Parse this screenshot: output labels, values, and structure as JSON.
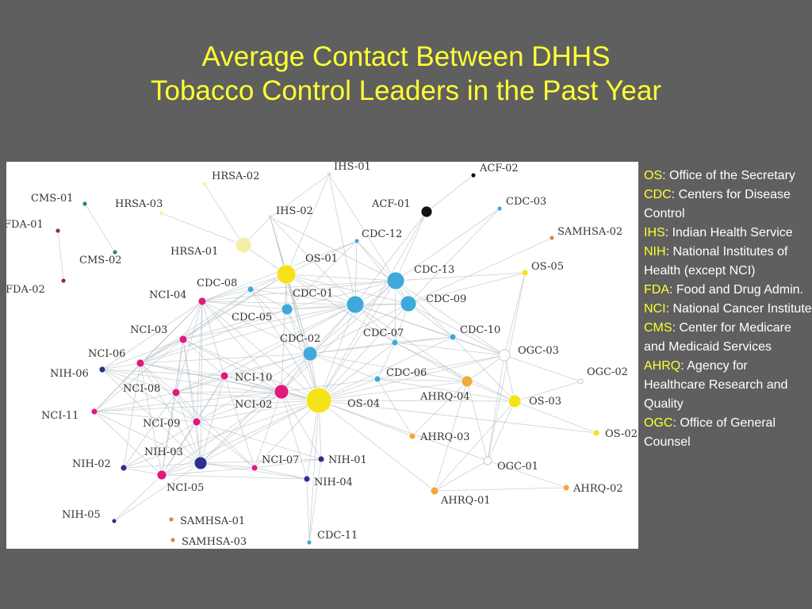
{
  "title": {
    "line1": "Average Contact Between DHHS",
    "line2": "Tobacco Control Leaders in the Past Year"
  },
  "colors": {
    "background": "#5f5f5f",
    "title": "#ffff33",
    "legend_abbr": "#ffff33",
    "legend_text": "#ffffff",
    "OS": "#f5e31a",
    "CDC": "#3ea9da",
    "IHS": "#c9dff0",
    "NIH": "#2b2f8f",
    "FDA": "#9a2b2b",
    "NCI": "#e0197d",
    "CMS": "#17945a",
    "AHRQ": "#f0a93a",
    "OGC": "#ffffff",
    "HRSA": "#f7eea8",
    "ACF": "#111111",
    "SAMHSA": "#d88a4a"
  },
  "legend": [
    {
      "abbr": "OS",
      "desc": ":  Office of the Secretary"
    },
    {
      "abbr": "CDC",
      "desc": ":  Centers for Disease Control"
    },
    {
      "abbr": "IHS",
      "desc": ":  Indian Health Service"
    },
    {
      "abbr": "NIH",
      "desc": ": National Institutes of Health (except NCI)"
    },
    {
      "abbr": "FDA",
      "desc": ":  Food and Drug Admin."
    },
    {
      "abbr": "NCI",
      "desc": ":  National Cancer Institute"
    },
    {
      "abbr": "CMS",
      "desc": ": Center for Medicare and Medicaid Services"
    },
    {
      "abbr": "AHRQ",
      "desc": ":  Agency for Healthcare Research and Quality"
    },
    {
      "abbr": "OGC",
      "desc": ":  Office of General Counsel"
    }
  ],
  "network": {
    "nodes": [
      {
        "id": "HRSA-02",
        "group": "HRSA"
      },
      {
        "id": "HRSA-03",
        "group": "HRSA"
      },
      {
        "id": "HRSA-01",
        "group": "HRSA"
      },
      {
        "id": "IHS-01",
        "group": "IHS"
      },
      {
        "id": "IHS-02",
        "group": "IHS"
      },
      {
        "id": "ACF-02",
        "group": "ACF"
      },
      {
        "id": "ACF-01",
        "group": "ACF"
      },
      {
        "id": "CDC-03",
        "group": "CDC"
      },
      {
        "id": "SAMHSA-02",
        "group": "SAMHSA"
      },
      {
        "id": "CMS-01",
        "group": "CMS"
      },
      {
        "id": "CMS-02",
        "group": "CMS"
      },
      {
        "id": "FDA-01",
        "group": "FDA"
      },
      {
        "id": "FDA-02",
        "group": "FDA"
      },
      {
        "id": "CDC-12",
        "group": "CDC"
      },
      {
        "id": "OS-01",
        "group": "OS"
      },
      {
        "id": "CDC-13",
        "group": "CDC"
      },
      {
        "id": "OS-05",
        "group": "OS"
      },
      {
        "id": "CDC-08",
        "group": "CDC"
      },
      {
        "id": "NCI-04",
        "group": "NCI"
      },
      {
        "id": "CDC-01",
        "group": "CDC"
      },
      {
        "id": "CDC-09",
        "group": "CDC"
      },
      {
        "id": "CDC-05",
        "group": "CDC"
      },
      {
        "id": "NCI-03",
        "group": "NCI"
      },
      {
        "id": "CDC-07",
        "group": "CDC"
      },
      {
        "id": "CDC-10",
        "group": "CDC"
      },
      {
        "id": "CDC-02",
        "group": "CDC"
      },
      {
        "id": "OGC-03",
        "group": "OGC"
      },
      {
        "id": "NCI-06",
        "group": "NCI"
      },
      {
        "id": "NIH-06",
        "group": "NIH"
      },
      {
        "id": "NCI-10",
        "group": "NCI"
      },
      {
        "id": "CDC-06",
        "group": "CDC"
      },
      {
        "id": "OGC-02",
        "group": "OGC"
      },
      {
        "id": "NCI-08",
        "group": "NCI"
      },
      {
        "id": "NCI-02",
        "group": "NCI"
      },
      {
        "id": "OS-04",
        "group": "OS"
      },
      {
        "id": "AHRQ-04",
        "group": "AHRQ"
      },
      {
        "id": "OS-03",
        "group": "OS"
      },
      {
        "id": "NCI-11",
        "group": "NCI"
      },
      {
        "id": "NCI-09",
        "group": "NCI"
      },
      {
        "id": "AHRQ-03",
        "group": "AHRQ"
      },
      {
        "id": "OS-02",
        "group": "OS"
      },
      {
        "id": "NIH-03",
        "group": "NIH"
      },
      {
        "id": "NCI-07",
        "group": "NCI"
      },
      {
        "id": "NIH-01",
        "group": "NIH"
      },
      {
        "id": "NIH-02",
        "group": "NIH"
      },
      {
        "id": "OGC-01",
        "group": "OGC"
      },
      {
        "id": "NCI-05",
        "group": "NCI"
      },
      {
        "id": "NIH-04",
        "group": "NIH"
      },
      {
        "id": "AHRQ-02",
        "group": "AHRQ"
      },
      {
        "id": "AHRQ-01",
        "group": "AHRQ"
      },
      {
        "id": "NIH-05",
        "group": "NIH"
      },
      {
        "id": "SAMHSA-01",
        "group": "SAMHSA"
      },
      {
        "id": "SAMHSA-03",
        "group": "SAMHSA"
      },
      {
        "id": "CDC-11",
        "group": "CDC"
      }
    ]
  }
}
